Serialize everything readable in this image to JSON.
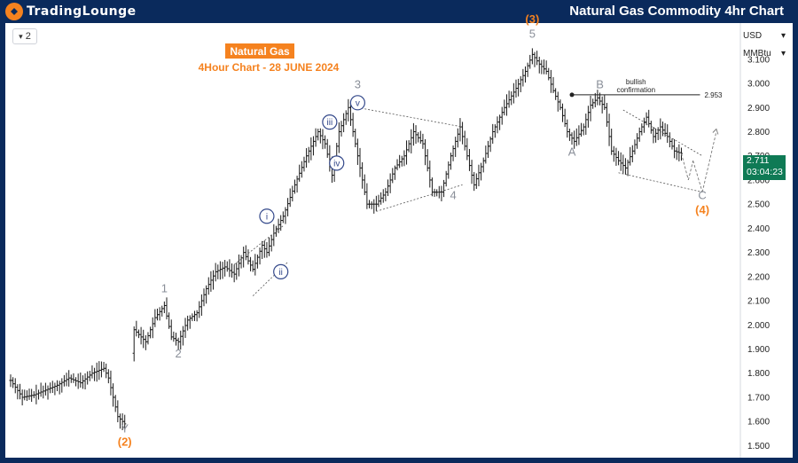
{
  "header": {
    "logo_text": "TradingLounge",
    "title": "Natural Gas Commodity 4hr Chart"
  },
  "toolbar": {
    "interval": "2",
    "interval_symbol": "▾"
  },
  "price_scale": {
    "currency": "USD",
    "unit": "MMBtu",
    "last_price": "2.711",
    "countdown": "03:04:23"
  },
  "chart_data": {
    "type": "candlestick",
    "title": "Natural Gas",
    "subtitle": "4Hour Chart - 28 JUNE 2024",
    "ylim": [
      1.45,
      3.25
    ],
    "yticks": [
      1.5,
      1.6,
      1.7,
      1.8,
      1.9,
      2.0,
      2.1,
      2.2,
      2.3,
      2.4,
      2.5,
      2.6,
      2.7,
      2.8,
      2.9,
      3.0,
      3.1
    ],
    "ytick_labels": [
      "1.500",
      "1.600",
      "1.700",
      "1.800",
      "1.900",
      "2.000",
      "2.100",
      "2.200",
      "2.300",
      "2.400",
      "2.500",
      "2.600",
      "2.700",
      "2.800",
      "2.900",
      "3.000",
      "3.100"
    ],
    "bar_count": 200,
    "path": [
      [
        0,
        1.77
      ],
      [
        5,
        1.7
      ],
      [
        10,
        1.71
      ],
      [
        15,
        1.73
      ],
      [
        20,
        1.75
      ],
      [
        25,
        1.78
      ],
      [
        30,
        1.76
      ],
      [
        35,
        1.8
      ],
      [
        40,
        1.82
      ],
      [
        42,
        1.78
      ],
      [
        46,
        1.62
      ],
      [
        49,
        1.59
      ],
      [
        53,
        1.98
      ],
      [
        58,
        1.93
      ],
      [
        62,
        2.03
      ],
      [
        66,
        2.08
      ],
      [
        69,
        1.95
      ],
      [
        72,
        1.93
      ],
      [
        76,
        2.02
      ],
      [
        80,
        2.05
      ],
      [
        84,
        2.15
      ],
      [
        88,
        2.22
      ],
      [
        92,
        2.24
      ],
      [
        96,
        2.21
      ],
      [
        100,
        2.3
      ],
      [
        104,
        2.23
      ],
      [
        108,
        2.33
      ],
      [
        110,
        2.3
      ],
      [
        113,
        2.38
      ],
      [
        117,
        2.45
      ],
      [
        122,
        2.58
      ],
      [
        127,
        2.7
      ],
      [
        132,
        2.8
      ],
      [
        135,
        2.75
      ],
      [
        138,
        2.62
      ],
      [
        141,
        2.8
      ],
      [
        145,
        2.9
      ],
      [
        149,
        2.7
      ],
      [
        153,
        2.5
      ],
      [
        157,
        2.5
      ],
      [
        161,
        2.55
      ],
      [
        165,
        2.65
      ],
      [
        169,
        2.7
      ],
      [
        173,
        2.8
      ],
      [
        177,
        2.75
      ],
      [
        181,
        2.55
      ],
      [
        185,
        2.55
      ],
      [
        189,
        2.7
      ],
      [
        193,
        2.82
      ],
      [
        196,
        2.7
      ],
      [
        199,
        2.58
      ],
      [
        203,
        2.68
      ],
      [
        207,
        2.8
      ],
      [
        212,
        2.9
      ],
      [
        217,
        2.98
      ],
      [
        221,
        3.05
      ],
      [
        224,
        3.12
      ],
      [
        227,
        3.08
      ],
      [
        230,
        3.05
      ],
      [
        233,
        2.97
      ],
      [
        236,
        2.9
      ],
      [
        239,
        2.8
      ],
      [
        242,
        2.76
      ],
      [
        246,
        2.82
      ],
      [
        249,
        2.91
      ],
      [
        252,
        2.94
      ],
      [
        255,
        2.9
      ],
      [
        258,
        2.72
      ],
      [
        261,
        2.68
      ],
      [
        264,
        2.65
      ],
      [
        267,
        2.72
      ],
      [
        270,
        2.8
      ],
      [
        273,
        2.86
      ],
      [
        276,
        2.78
      ],
      [
        279,
        2.82
      ],
      [
        282,
        2.78
      ],
      [
        285,
        2.72
      ],
      [
        288,
        2.71
      ]
    ],
    "wave_labels": [
      {
        "text": "(2)",
        "x": 49,
        "y": 1.5,
        "color": "#f5821f"
      },
      {
        "text": "Y",
        "x": 49,
        "y": 1.555,
        "color": "#8a8f99"
      },
      {
        "text": "1",
        "x": 66,
        "y": 2.135,
        "color": "#8a8f99"
      },
      {
        "text": "2",
        "x": 72,
        "y": 1.865,
        "color": "#8a8f99"
      },
      {
        "text": "3",
        "x": 149,
        "y": 2.98,
        "color": "#8a8f99"
      },
      {
        "text": "4",
        "x": 190,
        "y": 2.52,
        "color": "#8a8f99"
      },
      {
        "text": "5",
        "x": 224,
        "y": 3.19,
        "color": "#8a8f99"
      },
      {
        "text": "(3)",
        "x": 224,
        "y": 3.25,
        "color": "#f5821f"
      },
      {
        "text": "A",
        "x": 241,
        "y": 2.7,
        "color": "#8a8f99"
      },
      {
        "text": "B",
        "x": 253,
        "y": 2.98,
        "color": "#8a8f99"
      },
      {
        "text": "C",
        "x": 297,
        "y": 2.52,
        "color": "#8a8f99"
      },
      {
        "text": "(4)",
        "x": 297,
        "y": 2.46,
        "color": "#f5821f"
      }
    ],
    "circled_labels": [
      {
        "text": "i",
        "x": 110,
        "y": 2.45
      },
      {
        "text": "ii",
        "x": 116,
        "y": 2.22
      },
      {
        "text": "iii",
        "x": 137,
        "y": 2.84
      },
      {
        "text": "iv",
        "x": 140,
        "y": 2.67
      },
      {
        "text": "v",
        "x": 149,
        "y": 2.92
      }
    ],
    "annotation": {
      "text_line1": "bullish",
      "text_line2": "confirmation",
      "level": 2.953,
      "level_label": "2.953"
    }
  }
}
